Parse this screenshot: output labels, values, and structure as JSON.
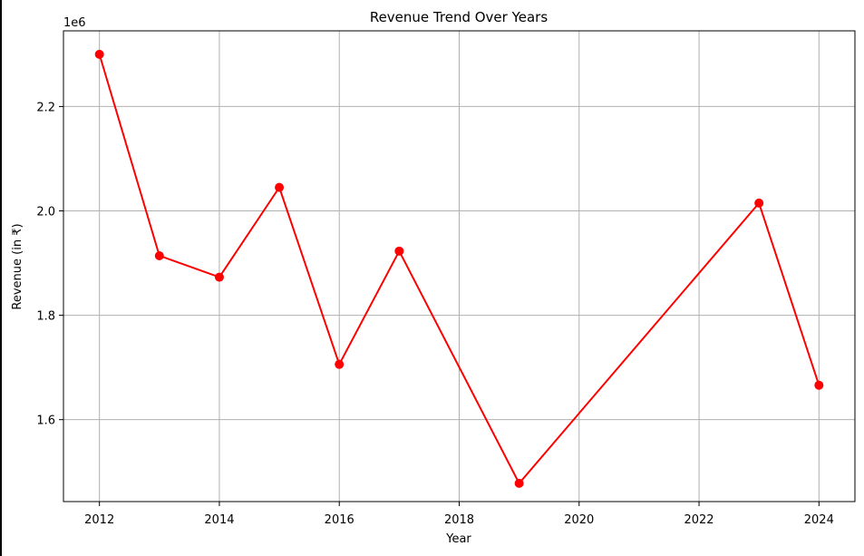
{
  "chart_data": {
    "type": "line",
    "title": "Revenue Trend Over Years",
    "xlabel": "Year",
    "ylabel": "Revenue (in ₹)",
    "y_scale_label": "1e6",
    "xlim": [
      2011.4,
      2024.6
    ],
    "ylim": [
      1443000.0,
      2345000.0
    ],
    "x_ticks": [
      2012,
      2014,
      2016,
      2018,
      2020,
      2022,
      2024
    ],
    "x_tick_labels": [
      "2012",
      "2014",
      "2016",
      "2018",
      "2020",
      "2022",
      "2024"
    ],
    "y_ticks": [
      1600000.0,
      1800000.0,
      2000000.0,
      2200000.0
    ],
    "y_tick_labels": [
      "1.6",
      "1.8",
      "2.0",
      "2.2"
    ],
    "grid": true,
    "series": [
      {
        "color": "#ff0000",
        "marker": "circle",
        "x": [
          2012,
          2013,
          2014,
          2015,
          2016,
          2017,
          2019,
          2023,
          2024
        ],
        "y": [
          2300000,
          1914000,
          1873000,
          2045000,
          1706000,
          1923000,
          1478000,
          2015000,
          1666000
        ]
      }
    ]
  }
}
